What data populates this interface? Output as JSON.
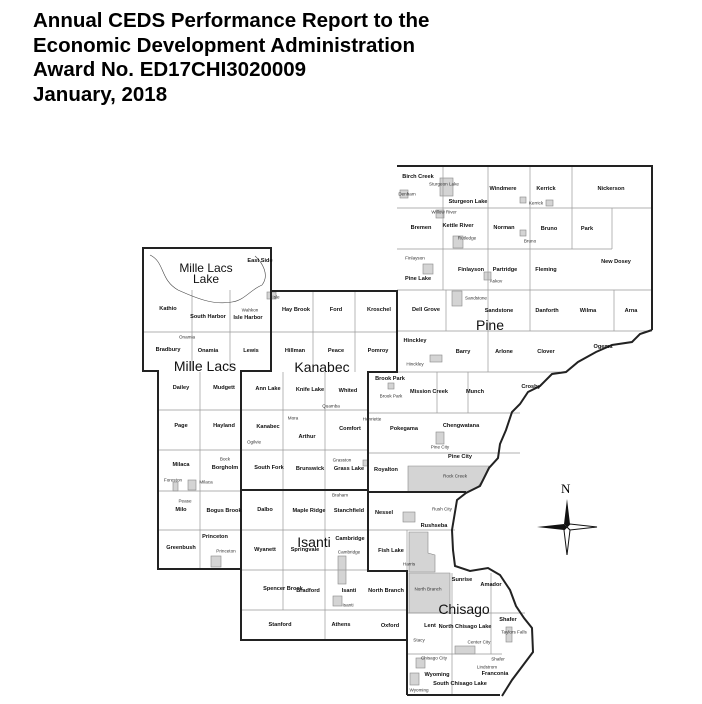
{
  "header": {
    "lines": [
      "Annual CEDS Performance Report to the",
      "Economic Development Administration",
      "Award No. ED17CHI3020009",
      "January, 2018"
    ]
  },
  "map": {
    "lake_label": "Mille Lacs Lake",
    "compass_label": "N",
    "counties": [
      "Mille Lacs",
      "Kanabec",
      "Pine",
      "Isanti",
      "Chisago"
    ],
    "townships": [
      "Birch Creek",
      "Sturgeon Lake",
      "Windmere",
      "Kerrick",
      "Nickerson",
      "Bremen",
      "Kettle River",
      "Norman",
      "Bruno",
      "Park",
      "New Dosey",
      "Pine Lake",
      "Finlayson",
      "Partridge",
      "Fleming",
      "Dell Grove",
      "Sandstone",
      "Danforth",
      "Wilma",
      "Arna",
      "Hinckley",
      "Barry",
      "Arlone",
      "Clover",
      "Ogema",
      "Brook Park",
      "Mission Creek",
      "Munch",
      "Crosby",
      "Pokegama",
      "Chengwatana",
      "Pine City",
      "Royalton",
      "East Side",
      "Kathio",
      "South Harbor",
      "Isle Harbor",
      "Bradbury",
      "Onamia",
      "Lewis",
      "Hay Brook",
      "Ford",
      "Kroschel",
      "Hillman",
      "Peace",
      "Pomroy",
      "Dailey",
      "Mudgett",
      "Ann Lake",
      "Knife Lake",
      "Whited",
      "Page",
      "Hayland",
      "Kanabec",
      "Arthur",
      "Comfort",
      "Milaca",
      "Borgholm",
      "South Fork",
      "Brunswick",
      "Grass Lake",
      "Milo",
      "Bogus Brook",
      "Dalbo",
      "Maple Ridge",
      "Stanchfield",
      "Nessel",
      "Rushseba",
      "Greenbush",
      "Princeton",
      "Wyanett",
      "Springvale",
      "Cambridge",
      "Fish Lake",
      "Spencer Brook",
      "Bradford",
      "Isanti",
      "North Branch",
      "Stanford",
      "Athens",
      "Oxford",
      "Sunrise",
      "Amador",
      "Lent",
      "North Chisago Lake",
      "Shafer",
      "Wyoming",
      "South Chisago Lake",
      "Franconia"
    ],
    "cities": [
      "Denham",
      "Sturgeon Lake",
      "Kerrick",
      "Willow River",
      "Rutledge",
      "Bruno",
      "Finlayson",
      "Askov",
      "Sandstone",
      "Hinckley",
      "Brook Park",
      "Henriette",
      "Pine City",
      "Rock Creek",
      "Isle",
      "Wahkon",
      "Onamia",
      "Quamba",
      "Mora",
      "Ogilvie",
      "Bock",
      "Grasston",
      "Foreston",
      "Milaca",
      "Pease",
      "Braham",
      "Rush City",
      "Princeton",
      "Cambridge",
      "Harris",
      "Isanti",
      "North Branch",
      "Stacy",
      "Taylors Falls",
      "Center City",
      "Chisago City",
      "Shafer",
      "Lindstrom",
      "Wyoming"
    ]
  }
}
